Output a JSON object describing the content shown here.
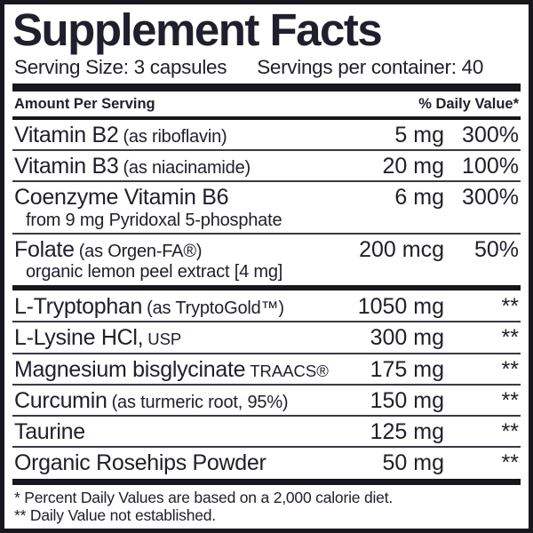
{
  "title": "Supplement Facts",
  "serving": {
    "size": "Serving Size: 3 capsules",
    "per_container": "Servings per container: 40"
  },
  "columns": {
    "amount_header": "Amount Per Serving",
    "dv_header": "% Daily Value*"
  },
  "sections": [
    {
      "rows": [
        {
          "name": "Vitamin B2",
          "qualifier": "(as riboflavin)",
          "amount": "5 mg",
          "dv": "300%"
        },
        {
          "name": "Vitamin B3",
          "qualifier": "(as niacinamide)",
          "amount": "20 mg",
          "dv": "100%"
        },
        {
          "name": "Coenzyme Vitamin B6",
          "sub": "from 9 mg Pyridoxal 5-phosphate",
          "amount": "6 mg",
          "dv": "300%"
        },
        {
          "name": "Folate",
          "qualifier": "(as Orgen-FA®)",
          "sub": "organic lemon peel extract [4 mg]",
          "amount": "200 mcg",
          "dv": "50%"
        }
      ]
    },
    {
      "rows": [
        {
          "name": "L-Tryptophan",
          "qualifier": "(as TryptoGold™)",
          "amount": "1050 mg",
          "dv": "**"
        },
        {
          "name": "L-Lysine HCl,",
          "suffix": "USP",
          "amount": "300 mg",
          "dv": "**"
        },
        {
          "name": "Magnesium bisglycinate",
          "suffix": "TRAACS®",
          "amount": "175 mg",
          "dv": "**"
        },
        {
          "name": "Curcumin",
          "qualifier": "(as turmeric root, 95%)",
          "amount": "150 mg",
          "dv": "**"
        },
        {
          "name": "Taurine",
          "amount": "125 mg",
          "dv": "**"
        },
        {
          "name": "Organic Rosehips Powder",
          "amount": "50 mg",
          "dv": "**"
        }
      ]
    }
  ],
  "footnotes": [
    "* Percent Daily Values are based on a 2,000 calorie diet.",
    "** Daily Value not established."
  ],
  "colors": {
    "ink": "#20202c",
    "bar": "#17171d",
    "separator": "#3a3a44",
    "background": "#ffffff"
  }
}
